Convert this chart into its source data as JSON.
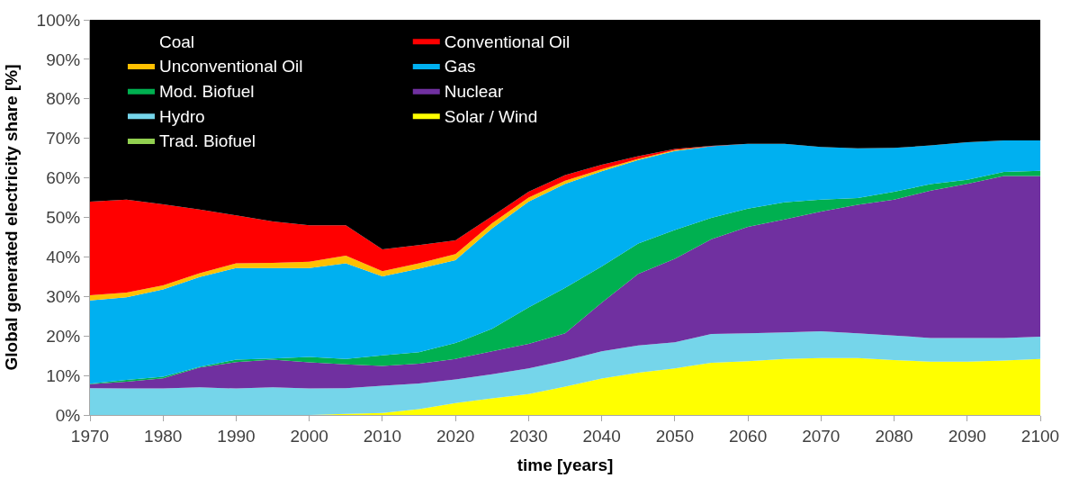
{
  "chart_data": {
    "type": "area",
    "stacked": true,
    "xlabel": "time [years]",
    "ylabel": "Global generated electricity share [%]",
    "x": [
      1970,
      1975,
      1980,
      1985,
      1990,
      1995,
      2000,
      2005,
      2010,
      2015,
      2020,
      2025,
      2030,
      2035,
      2040,
      2045,
      2050,
      2055,
      2060,
      2065,
      2070,
      2075,
      2080,
      2085,
      2090,
      2095,
      2100
    ],
    "series": [
      {
        "name": "Trad. Biofuel",
        "color": "#92d050",
        "values": [
          null,
          null,
          null,
          null,
          null,
          null,
          null,
          null,
          null,
          null,
          null,
          null,
          null,
          null,
          null,
          null,
          null,
          null,
          null,
          null,
          null,
          null,
          null,
          null,
          null,
          null,
          null
        ]
      },
      {
        "name": "Solar / Wind",
        "color": "#ffff00",
        "values": [
          0,
          0,
          0,
          0,
          0,
          0,
          0,
          0.3,
          0.5,
          1.5,
          3.0,
          4.2,
          5.3,
          7.2,
          9.2,
          10.7,
          11.8,
          13.2,
          13.6,
          14.2,
          14.4,
          14.4,
          13.9,
          13.5,
          13.5,
          13.8,
          14.2
        ]
      },
      {
        "name": "Hydro",
        "color": "#75d5ea",
        "values": [
          6.8,
          6.7,
          6.7,
          7.0,
          6.7,
          7.0,
          6.7,
          6.5,
          6.9,
          6.5,
          6.0,
          6.1,
          6.5,
          6.6,
          6.9,
          6.9,
          6.6,
          7.3,
          7.1,
          6.7,
          6.8,
          6.3,
          6.2,
          6.0,
          6.0,
          5.7,
          5.6
        ]
      },
      {
        "name": "Nuclear",
        "color": "#7030a0",
        "values": [
          1.0,
          1.7,
          2.6,
          5.0,
          6.7,
          7.0,
          6.6,
          6.0,
          5.0,
          5.0,
          5.2,
          5.8,
          6.2,
          6.9,
          12.3,
          18.1,
          21.1,
          24.0,
          26.9,
          28.6,
          30.3,
          32.5,
          34.4,
          37.3,
          39.0,
          41.0,
          40.7
        ]
      },
      {
        "name": "Mod. Biofuel",
        "color": "#00b050",
        "values": [
          0.1,
          0.5,
          0.4,
          0.2,
          0.6,
          0.3,
          1.4,
          1.4,
          2.7,
          2.9,
          4.0,
          5.7,
          9.2,
          11.5,
          9.2,
          7.7,
          7.3,
          5.4,
          4.6,
          4.3,
          3.0,
          1.7,
          2.0,
          1.6,
          1.0,
          1.0,
          1.3
        ]
      },
      {
        "name": "Gas",
        "color": "#00b0f0",
        "values": [
          21.1,
          20.9,
          22.1,
          22.7,
          23.2,
          22.9,
          22.5,
          24.2,
          20.0,
          21.1,
          21.0,
          25.4,
          26.8,
          26.3,
          24.1,
          21.1,
          20.0,
          18.1,
          16.4,
          14.8,
          13.3,
          12.6,
          11.1,
          9.8,
          9.5,
          8.0,
          7.7
        ]
      },
      {
        "name": "Unconventional Oil",
        "color": "#ffc000",
        "values": [
          1.3,
          1.2,
          1.0,
          1.0,
          1.2,
          1.3,
          1.6,
          1.9,
          1.3,
          1.4,
          1.5,
          1.3,
          1.0,
          0.8,
          0.5,
          0.3,
          0.2,
          0,
          0,
          0,
          0,
          0,
          0,
          0,
          0,
          0,
          0
        ]
      },
      {
        "name": "Conventional Oil",
        "color": "#ff0000",
        "values": [
          23.7,
          23.5,
          20.5,
          16.1,
          12.1,
          10.5,
          9.2,
          7.7,
          5.5,
          4.6,
          3.5,
          1.8,
          1.5,
          1.4,
          1.1,
          0.7,
          0.3,
          0.1,
          0,
          0,
          0,
          0,
          0,
          0,
          0,
          0,
          0
        ]
      },
      {
        "name": "Coal",
        "color": "#000000",
        "values": [
          46.0,
          45.5,
          46.7,
          48.0,
          49.5,
          51.0,
          52.0,
          52.0,
          58.1,
          57.0,
          55.8,
          49.7,
          43.5,
          39.3,
          36.7,
          34.5,
          32.7,
          31.9,
          31.4,
          31.4,
          32.2,
          32.5,
          32.4,
          31.8,
          31.0,
          30.5,
          30.5
        ]
      }
    ],
    "xlim": [
      1970,
      2100
    ],
    "xticks": [
      1970,
      1980,
      1990,
      2000,
      2010,
      2020,
      2030,
      2040,
      2050,
      2060,
      2070,
      2080,
      2090,
      2100
    ],
    "ylim": [
      0,
      100
    ],
    "yticks": [
      {
        "value": 0,
        "label": "0%"
      },
      {
        "value": 10,
        "label": "10%"
      },
      {
        "value": 20,
        "label": "20%"
      },
      {
        "value": 30,
        "label": "30%"
      },
      {
        "value": 40,
        "label": "40%"
      },
      {
        "value": 50,
        "label": "50%"
      },
      {
        "value": 60,
        "label": "60%"
      },
      {
        "value": 70,
        "label": "70%"
      },
      {
        "value": 80,
        "label": "80%"
      },
      {
        "value": 90,
        "label": "90%"
      },
      {
        "value": 100,
        "label": "100%"
      }
    ],
    "legend": "top left"
  }
}
